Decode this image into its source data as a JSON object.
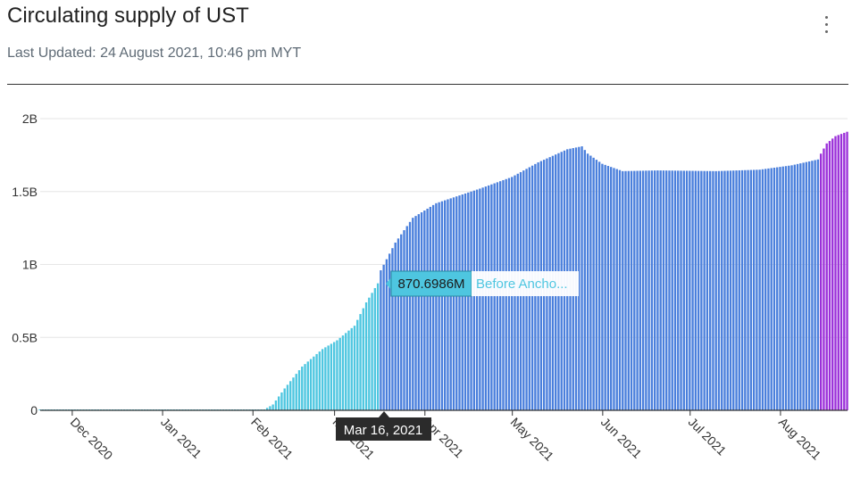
{
  "header": {
    "title": "Circulating supply of UST",
    "last_updated": "Last Updated: 24 August 2021, 10:46 pm MYT",
    "menu_icon": "vertical-ellipsis-icon"
  },
  "tooltip": {
    "value_text": "870.6986M",
    "series_text": "Before Ancho...",
    "date_text": "Mar 16, 2021"
  },
  "chart_data": {
    "type": "bar",
    "title": "Circulating supply of UST",
    "xlabel": "",
    "ylabel": "",
    "yticks": [
      {
        "value": 0,
        "label": "0"
      },
      {
        "value": 500000000,
        "label": "0.5B"
      },
      {
        "value": 1000000000,
        "label": "1B"
      },
      {
        "value": 1500000000,
        "label": "1.5B"
      },
      {
        "value": 2000000000,
        "label": "2B"
      }
    ],
    "xticks": [
      {
        "date": "2020-12-01",
        "label": "Dec 2020"
      },
      {
        "date": "2021-01-01",
        "label": "Jan 2021"
      },
      {
        "date": "2021-02-01",
        "label": "Feb 2021"
      },
      {
        "date": "2021-03-01",
        "label": "Mar 2021"
      },
      {
        "date": "2021-04-01",
        "label": "Apr 2021"
      },
      {
        "date": "2021-05-01",
        "label": "May 2021"
      },
      {
        "date": "2021-06-01",
        "label": "Jun 2021"
      },
      {
        "date": "2021-07-01",
        "label": "Jul 2021"
      },
      {
        "date": "2021-08-01",
        "label": "Aug 2021"
      }
    ],
    "xlim": [
      "2020-11-20",
      "2021-08-24"
    ],
    "ylim": [
      0,
      2000000000
    ],
    "grid": true,
    "legend": "none",
    "colors": {
      "before_anchor": "#4ec6e0",
      "main": "#4a7fdc",
      "recent": "#9b30d9",
      "axis": "#333333",
      "grid": "#e6e6e6"
    },
    "highlight": {
      "date": "2021-03-16",
      "value": 870698600
    },
    "series": [
      {
        "name": "Before Ancho...",
        "color": "#4ec6e0",
        "start": "2020-11-20",
        "end": "2021-03-16",
        "anchors": [
          [
            "2020-11-20",
            0
          ],
          [
            "2020-12-15",
            5000000
          ],
          [
            "2021-02-05",
            5000000
          ],
          [
            "2021-02-08",
            40000000
          ],
          [
            "2021-02-12",
            150000000
          ],
          [
            "2021-02-18",
            300000000
          ],
          [
            "2021-02-25",
            420000000
          ],
          [
            "2021-03-02",
            480000000
          ],
          [
            "2021-03-08",
            580000000
          ],
          [
            "2021-03-12",
            740000000
          ],
          [
            "2021-03-16",
            870698600
          ]
        ]
      },
      {
        "name": "",
        "color": "#4a7fdc",
        "start": "2021-03-17",
        "end": "2021-08-14",
        "anchors": [
          [
            "2021-03-17",
            960000000
          ],
          [
            "2021-03-22",
            1150000000
          ],
          [
            "2021-03-28",
            1320000000
          ],
          [
            "2021-04-05",
            1420000000
          ],
          [
            "2021-04-20",
            1520000000
          ],
          [
            "2021-05-01",
            1600000000
          ],
          [
            "2021-05-10",
            1700000000
          ],
          [
            "2021-05-20",
            1790000000
          ],
          [
            "2021-05-25",
            1810000000
          ],
          [
            "2021-05-27",
            1760000000
          ],
          [
            "2021-06-01",
            1690000000
          ],
          [
            "2021-06-08",
            1640000000
          ],
          [
            "2021-06-20",
            1645000000
          ],
          [
            "2021-07-10",
            1640000000
          ],
          [
            "2021-07-25",
            1650000000
          ],
          [
            "2021-08-05",
            1680000000
          ],
          [
            "2021-08-14",
            1720000000
          ]
        ]
      },
      {
        "name": "",
        "color": "#9b30d9",
        "start": "2021-08-15",
        "end": "2021-08-24",
        "anchors": [
          [
            "2021-08-15",
            1760000000
          ],
          [
            "2021-08-17",
            1830000000
          ],
          [
            "2021-08-20",
            1880000000
          ],
          [
            "2021-08-24",
            1910000000
          ]
        ]
      }
    ]
  }
}
